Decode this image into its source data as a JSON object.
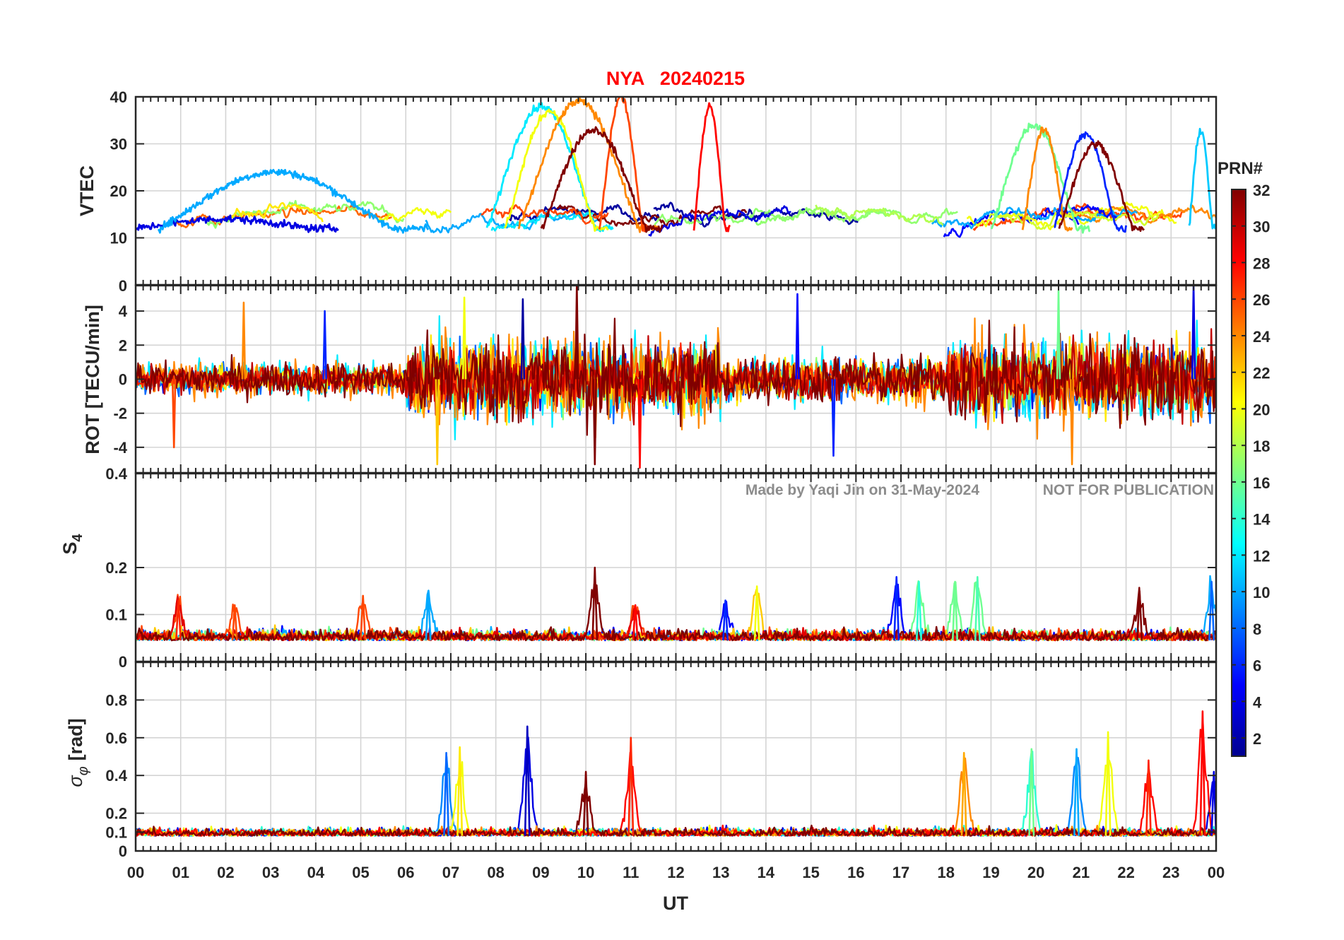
{
  "figure": {
    "title": "NYA   20240215",
    "watermark_left": "Made by Yaqi Jin on 31-May-2024",
    "watermark_right": "NOT FOR PUBLICATION",
    "xlabel": "UT",
    "colorbar_label": "PRN#"
  },
  "chart_data": [
    {
      "type": "line",
      "ylabel": "VTEC",
      "xlim": [
        0,
        24
      ],
      "ylim": [
        0,
        40
      ],
      "yticks": [
        10,
        20,
        30,
        40
      ],
      "ytick_labels": [
        "10",
        "20",
        "30",
        "40"
      ],
      "grid": true,
      "series_note_prn_range": [
        1,
        32
      ],
      "baseline": 14,
      "features": [
        {
          "prn": 4,
          "x_start": 0.0,
          "x_end": 4.5,
          "peak": 14
        },
        {
          "prn": 10,
          "x_start": 0.5,
          "x_end": 6.5,
          "peak": 24
        },
        {
          "prn": 12,
          "x_start": 7.8,
          "x_end": 10.6,
          "peak": 38
        },
        {
          "prn": 20,
          "x_start": 8.2,
          "x_end": 10.5,
          "peak": 37
        },
        {
          "prn": 24,
          "x_start": 8.5,
          "x_end": 11.6,
          "peak": 39
        },
        {
          "prn": 26,
          "x_start": 10.3,
          "x_end": 11.4,
          "peak": 40
        },
        {
          "prn": 32,
          "x_start": 9.0,
          "x_end": 11.7,
          "peak": 33
        },
        {
          "prn": 28,
          "x_start": 12.4,
          "x_end": 13.2,
          "peak": 38
        },
        {
          "prn": 16,
          "x_start": 19.0,
          "x_end": 21.2,
          "peak": 34
        },
        {
          "prn": 24,
          "x_start": 19.7,
          "x_end": 20.8,
          "peak": 33
        },
        {
          "prn": 6,
          "x_start": 20.4,
          "x_end": 22.0,
          "peak": 32
        },
        {
          "prn": 32,
          "x_start": 20.5,
          "x_end": 22.4,
          "peak": 30
        },
        {
          "prn": 11,
          "x_start": 23.4,
          "x_end": 24.0,
          "peak": 33
        }
      ]
    },
    {
      "type": "line",
      "ylabel": "ROT [TECU/min]",
      "xlim": [
        0,
        24
      ],
      "ylim": [
        -5.5,
        5.5
      ],
      "yticks": [
        -4,
        -2,
        0,
        2,
        4
      ],
      "ytick_labels": [
        "-4",
        "-2",
        "0",
        "2",
        "4"
      ],
      "top_tick_label": "0",
      "grid": true,
      "activity_envelope": [
        {
          "x": [
            0,
            6
          ],
          "amp": 1.0
        },
        {
          "x": [
            6,
            13
          ],
          "amp": 2.6
        },
        {
          "x": [
            13,
            18
          ],
          "amp": 1.4
        },
        {
          "x": [
            18,
            24
          ],
          "amp": 2.6
        }
      ],
      "spikes": [
        {
          "prn": 26,
          "x": 0.85,
          "y": -4.0
        },
        {
          "prn": 24,
          "x": 2.4,
          "y": 4.5
        },
        {
          "prn": 6,
          "x": 4.2,
          "y": 4.0
        },
        {
          "prn": 22,
          "x": 6.7,
          "y": -5.0
        },
        {
          "prn": 20,
          "x": 7.3,
          "y": 4.8
        },
        {
          "prn": 2,
          "x": 8.6,
          "y": 4.7
        },
        {
          "prn": 32,
          "x": 9.8,
          "y": 5.5
        },
        {
          "prn": 32,
          "x": 10.2,
          "y": -5.0
        },
        {
          "prn": 28,
          "x": 11.2,
          "y": -5.2
        },
        {
          "prn": 5,
          "x": 14.7,
          "y": 5.0
        },
        {
          "prn": 6,
          "x": 15.5,
          "y": -4.5
        },
        {
          "prn": 16,
          "x": 20.5,
          "y": 5.2
        },
        {
          "prn": 24,
          "x": 20.8,
          "y": -5.0
        },
        {
          "prn": 4,
          "x": 23.5,
          "y": 5.5
        }
      ]
    },
    {
      "type": "line",
      "ylabel": "S",
      "ylabel_sub": "4",
      "xlim": [
        0,
        24
      ],
      "ylim": [
        0,
        0.4
      ],
      "yticks": [
        0,
        0.1,
        0.2,
        0.4
      ],
      "ytick_labels": [
        "0",
        "0.1",
        "0.2",
        "0.4"
      ],
      "grid": true,
      "baseline": 0.045,
      "peaks": [
        {
          "prn": 27,
          "x": 0.95,
          "y": 0.13
        },
        {
          "prn": 26,
          "x": 2.2,
          "y": 0.12
        },
        {
          "prn": 26,
          "x": 5.05,
          "y": 0.14
        },
        {
          "prn": 10,
          "x": 6.5,
          "y": 0.15
        },
        {
          "prn": 32,
          "x": 10.2,
          "y": 0.2
        },
        {
          "prn": 28,
          "x": 11.1,
          "y": 0.12
        },
        {
          "prn": 6,
          "x": 13.1,
          "y": 0.13
        },
        {
          "prn": 20,
          "x": 13.8,
          "y": 0.16
        },
        {
          "prn": 6,
          "x": 16.9,
          "y": 0.18
        },
        {
          "prn": 14,
          "x": 17.4,
          "y": 0.17
        },
        {
          "prn": 16,
          "x": 18.2,
          "y": 0.17
        },
        {
          "prn": 15,
          "x": 18.7,
          "y": 0.18
        },
        {
          "prn": 32,
          "x": 22.3,
          "y": 0.15
        },
        {
          "prn": 8,
          "x": 23.9,
          "y": 0.17
        }
      ]
    },
    {
      "type": "line",
      "ylabel": "σ",
      "ylabel_sub": "φ",
      "ylabel_unit": "[rad]",
      "xlim": [
        0,
        24
      ],
      "ylim": [
        0,
        1.0
      ],
      "yticks": [
        0,
        0.1,
        0.2,
        0.4,
        0.6,
        0.8
      ],
      "ytick_labels": [
        "0",
        "0.1",
        "0.2",
        "0.4",
        "0.6",
        "0.8"
      ],
      "grid": true,
      "baseline": 0.08,
      "peaks": [
        {
          "prn": 8,
          "x": 6.9,
          "y": 0.52
        },
        {
          "prn": 21,
          "x": 7.2,
          "y": 0.55
        },
        {
          "prn": 3,
          "x": 8.7,
          "y": 0.66
        },
        {
          "prn": 32,
          "x": 10.0,
          "y": 0.42
        },
        {
          "prn": 27,
          "x": 11.0,
          "y": 0.6
        },
        {
          "prn": 23,
          "x": 18.4,
          "y": 0.52
        },
        {
          "prn": 16,
          "x": 19.9,
          "y": 0.54
        },
        {
          "prn": 10,
          "x": 20.9,
          "y": 0.54
        },
        {
          "prn": 20,
          "x": 21.6,
          "y": 0.63
        },
        {
          "prn": 27,
          "x": 22.5,
          "y": 0.48
        },
        {
          "prn": 28,
          "x": 23.7,
          "y": 0.74
        },
        {
          "prn": 4,
          "x": 23.95,
          "y": 0.42
        }
      ]
    }
  ],
  "x_axis": {
    "ticks": [
      0,
      1,
      2,
      3,
      4,
      5,
      6,
      7,
      8,
      9,
      10,
      11,
      12,
      13,
      14,
      15,
      16,
      17,
      18,
      19,
      20,
      21,
      22,
      23,
      24
    ],
    "tick_labels": [
      "00",
      "01",
      "02",
      "03",
      "04",
      "05",
      "06",
      "07",
      "08",
      "09",
      "10",
      "11",
      "12",
      "13",
      "14",
      "15",
      "16",
      "17",
      "18",
      "19",
      "20",
      "21",
      "22",
      "23",
      "00"
    ]
  },
  "colorbar": {
    "colormap": "jet",
    "range": [
      1,
      32
    ],
    "ticks": [
      2,
      4,
      6,
      8,
      10,
      12,
      14,
      16,
      18,
      20,
      22,
      24,
      26,
      28,
      30,
      32
    ],
    "tick_labels": [
      "2",
      "4",
      "6",
      "8",
      "10",
      "12",
      "14",
      "16",
      "18",
      "20",
      "22",
      "24",
      "26",
      "28",
      "30",
      "32"
    ]
  },
  "colors": {
    "title": "#ff0000",
    "watermark": "#8c8c8c",
    "axis": "#262626",
    "grid": "#d0d0d0"
  }
}
